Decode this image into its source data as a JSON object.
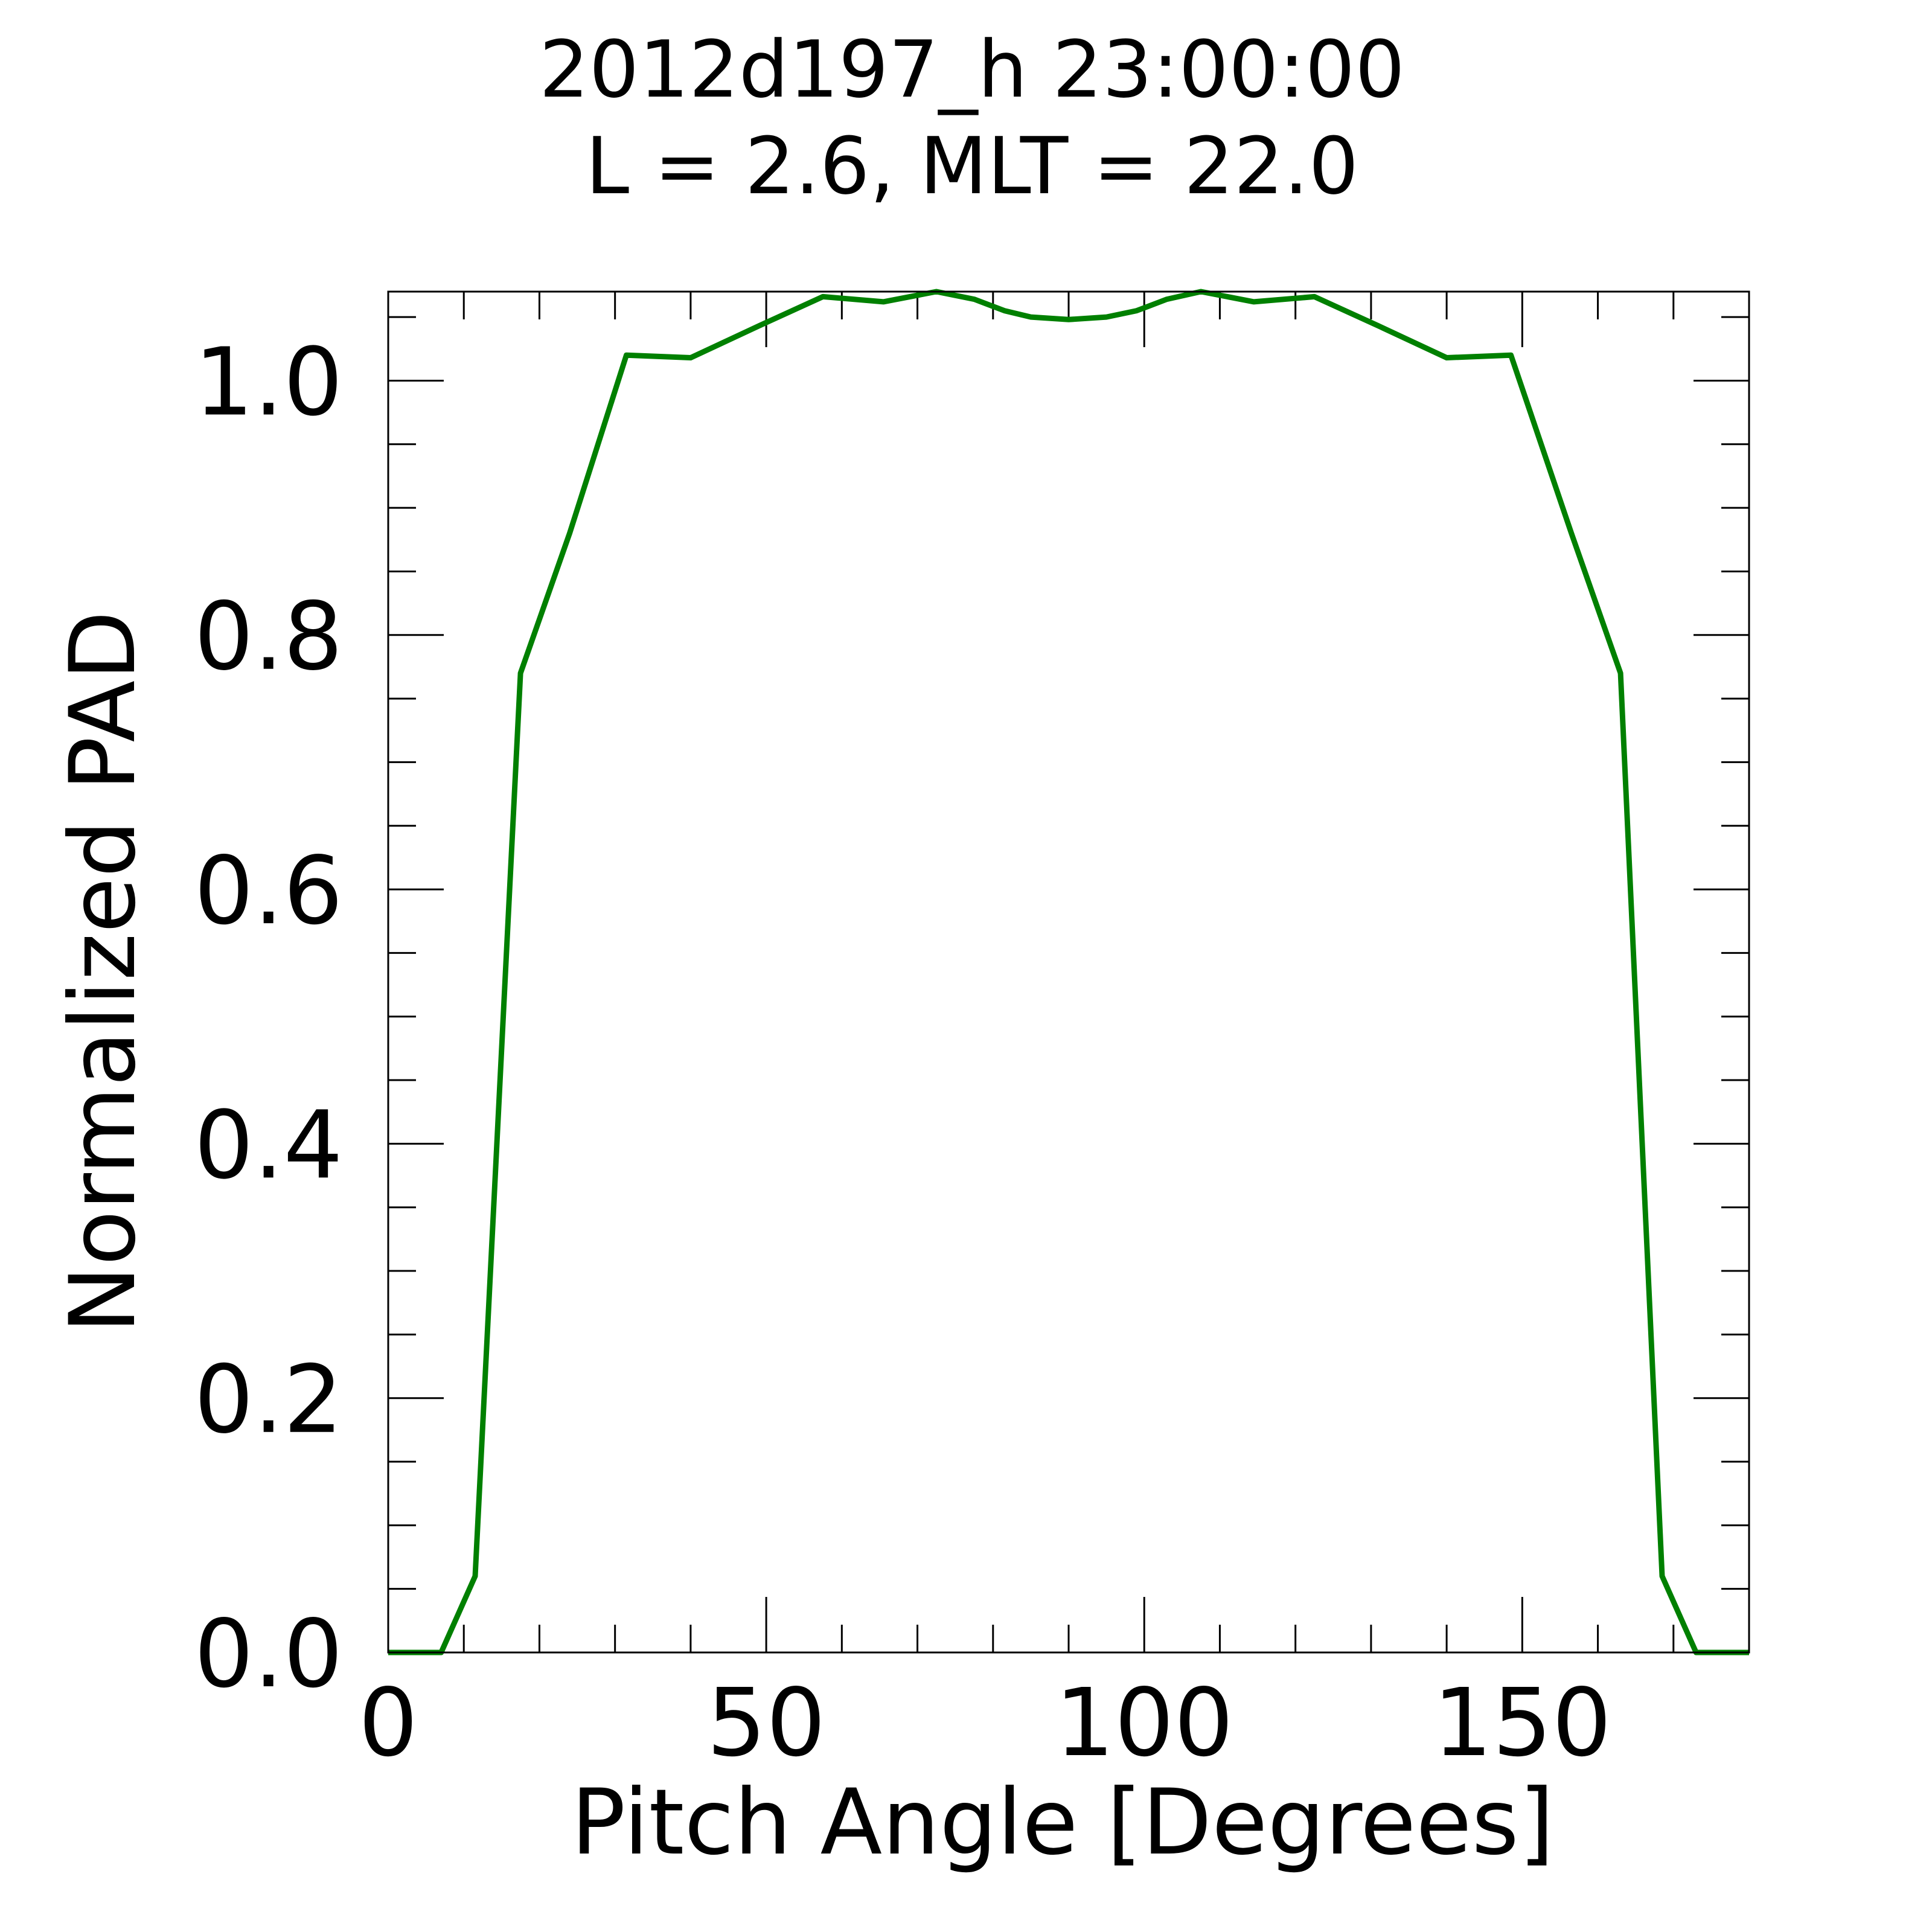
{
  "chart_data": {
    "type": "line",
    "title": "2012d197_h  23:00:00",
    "subtitle": "L = 2.6, MLT = 22.0",
    "xlabel": "Pitch Angle [Degrees]",
    "ylabel": "Normalized PAD",
    "xlim": [
      0,
      180
    ],
    "ylim": [
      0,
      1.07
    ],
    "xticks": [
      0,
      50,
      100,
      150
    ],
    "xtick_labels": [
      "0",
      "50",
      "100",
      "150"
    ],
    "x_minor_step": 10,
    "yticks": [
      0.0,
      0.2,
      0.4,
      0.6,
      0.8,
      1.0
    ],
    "ytick_labels": [
      "0.0",
      "0.2",
      "0.4",
      "0.6",
      "0.8",
      "1.0"
    ],
    "y_minor_step": 0.05,
    "grid": false,
    "series": [
      {
        "color": "#008000",
        "x": [
          0,
          7,
          11.5,
          17.5,
          24,
          31.5,
          40,
          49,
          57.5,
          65.5,
          72.5,
          77.5,
          81.5,
          85,
          90,
          95,
          99,
          103,
          107.5,
          114.5,
          122.5,
          131,
          140,
          148.5,
          156.5,
          163,
          168.5,
          173,
          180
        ],
        "y": [
          0.0,
          0.0,
          0.06,
          0.77,
          0.88,
          1.02,
          1.018,
          1.043,
          1.066,
          1.062,
          1.07,
          1.064,
          1.055,
          1.05,
          1.048,
          1.05,
          1.055,
          1.064,
          1.07,
          1.062,
          1.066,
          1.043,
          1.018,
          1.02,
          0.88,
          0.77,
          0.06,
          0.0,
          0.0
        ]
      }
    ]
  }
}
